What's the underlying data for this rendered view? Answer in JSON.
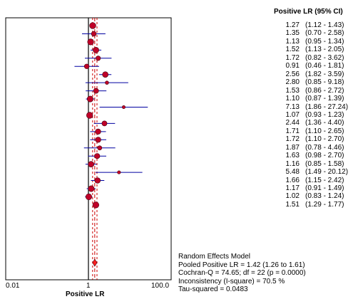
{
  "chart_data": {
    "type": "scatter",
    "subtype": "forest-plot",
    "column_header": "Positive LR (95% CI)",
    "xlabel": "Positive LR",
    "x_scale": "log",
    "xlim": [
      0.01,
      100.0
    ],
    "x_ticks": [
      "0.01",
      "1",
      "100.0"
    ],
    "reference_line": 1,
    "pooled": {
      "estimate": 1.42,
      "ci_low": 1.26,
      "ci_high": 1.61
    },
    "studies": [
      {
        "estimate": 1.27,
        "ci_low": 1.12,
        "ci_high": 1.43,
        "estimate_label": "1.27",
        "ci_label": "(1.12 - 1.43)"
      },
      {
        "estimate": 1.35,
        "ci_low": 0.7,
        "ci_high": 2.58,
        "estimate_label": "1.35",
        "ci_label": "(0.70 - 2.58)"
      },
      {
        "estimate": 1.13,
        "ci_low": 0.95,
        "ci_high": 1.34,
        "estimate_label": "1.13",
        "ci_label": "(0.95 - 1.34)"
      },
      {
        "estimate": 1.52,
        "ci_low": 1.13,
        "ci_high": 2.05,
        "estimate_label": "1.52",
        "ci_label": "(1.13 - 2.05)"
      },
      {
        "estimate": 1.72,
        "ci_low": 0.82,
        "ci_high": 3.62,
        "estimate_label": "1.72",
        "ci_label": "(0.82 - 3.62)"
      },
      {
        "estimate": 0.91,
        "ci_low": 0.46,
        "ci_high": 1.81,
        "estimate_label": "0.91",
        "ci_label": "(0.46 - 1.81)"
      },
      {
        "estimate": 2.56,
        "ci_low": 1.82,
        "ci_high": 3.59,
        "estimate_label": "2.56",
        "ci_label": "(1.82 - 3.59)"
      },
      {
        "estimate": 2.8,
        "ci_low": 0.85,
        "ci_high": 9.18,
        "estimate_label": "2.80",
        "ci_label": "(0.85 - 9.18)"
      },
      {
        "estimate": 1.53,
        "ci_low": 0.86,
        "ci_high": 2.72,
        "estimate_label": "1.53",
        "ci_label": "(0.86 - 2.72)"
      },
      {
        "estimate": 1.1,
        "ci_low": 0.87,
        "ci_high": 1.39,
        "estimate_label": "1.10",
        "ci_label": "(0.87 - 1.39)"
      },
      {
        "estimate": 7.13,
        "ci_low": 1.86,
        "ci_high": 27.24,
        "estimate_label": "7.13",
        "ci_label": "(1.86 - 27.24)"
      },
      {
        "estimate": 1.07,
        "ci_low": 0.93,
        "ci_high": 1.23,
        "estimate_label": "1.07",
        "ci_label": "(0.93 - 1.23)"
      },
      {
        "estimate": 2.44,
        "ci_low": 1.36,
        "ci_high": 4.4,
        "estimate_label": "2.44",
        "ci_label": "(1.36 - 4.40)"
      },
      {
        "estimate": 1.71,
        "ci_low": 1.1,
        "ci_high": 2.65,
        "estimate_label": "1.71",
        "ci_label": "(1.10 - 2.65)"
      },
      {
        "estimate": 1.72,
        "ci_low": 1.1,
        "ci_high": 2.7,
        "estimate_label": "1.72",
        "ci_label": "(1.10 - 2.70)"
      },
      {
        "estimate": 1.87,
        "ci_low": 0.78,
        "ci_high": 4.46,
        "estimate_label": "1.87",
        "ci_label": "(0.78 - 4.46)"
      },
      {
        "estimate": 1.63,
        "ci_low": 0.98,
        "ci_high": 2.7,
        "estimate_label": "1.63",
        "ci_label": "(0.98 - 2.70)"
      },
      {
        "estimate": 1.16,
        "ci_low": 0.85,
        "ci_high": 1.58,
        "estimate_label": "1.16",
        "ci_label": "(0.85 - 1.58)"
      },
      {
        "estimate": 5.48,
        "ci_low": 1.49,
        "ci_high": 20.12,
        "estimate_label": "5.48",
        "ci_label": "(1.49 - 20.12)"
      },
      {
        "estimate": 1.66,
        "ci_low": 1.15,
        "ci_high": 2.42,
        "estimate_label": "1.66",
        "ci_label": "(1.15 - 2.42)"
      },
      {
        "estimate": 1.17,
        "ci_low": 0.91,
        "ci_high": 1.49,
        "estimate_label": "1.17",
        "ci_label": "(0.91 - 1.49)"
      },
      {
        "estimate": 1.02,
        "ci_low": 0.83,
        "ci_high": 1.24,
        "estimate_label": "1.02",
        "ci_label": "(0.83 - 1.24)"
      },
      {
        "estimate": 1.51,
        "ci_low": 1.29,
        "ci_high": 1.77,
        "estimate_label": "1.51",
        "ci_label": "(1.29 - 1.77)"
      }
    ],
    "summary_lines": [
      "Random Effects Model",
      "Pooled Positive LR = 1.42 (1.26 to 1.61)",
      "Cochran-Q = 74.65; df = 22 (p = 0.0000)",
      "Inconsistency (I-square) = 70.5 %",
      "Tau-squared = 0.0483"
    ],
    "colors": {
      "ci_line": "#0000a0",
      "point_fill": "#c00028",
      "point_stroke": "#400010",
      "pooled_line": "#cc0000",
      "frame": "#000000"
    }
  }
}
